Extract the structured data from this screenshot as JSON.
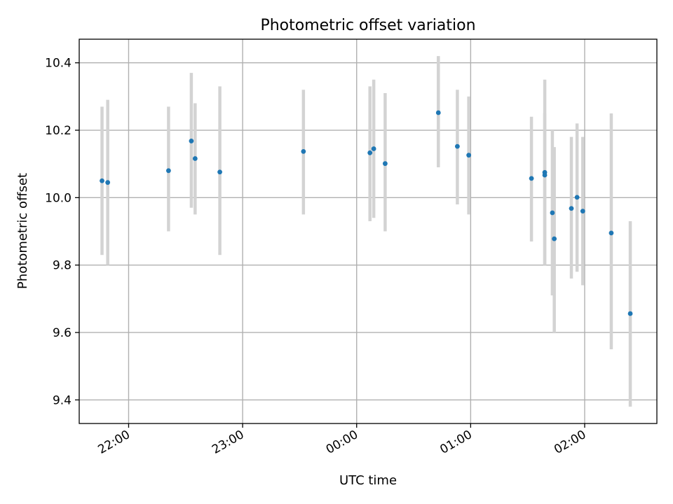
{
  "chart_data": {
    "type": "scatter",
    "title": "Photometric offset variation",
    "xlabel": "UTC time",
    "ylabel": "Photometric offset",
    "xlim": [
      "21:34",
      "02:38"
    ],
    "ylim": [
      9.33,
      10.47
    ],
    "x_ticks": [
      "22:00",
      "23:00",
      "00:00",
      "01:00",
      "02:00"
    ],
    "y_ticks": [
      "9.4",
      "9.6",
      "9.8",
      "10.0",
      "10.2",
      "10.4"
    ],
    "grid": true,
    "colors": {
      "point": "#1f77b4",
      "errorbar": "#d3d3d3",
      "grid": "#b0b0b0"
    },
    "points": [
      {
        "time": "21:46",
        "y": 10.05,
        "ylo": 9.83,
        "yhi": 10.27
      },
      {
        "time": "21:49",
        "y": 10.045,
        "ylo": 9.8,
        "yhi": 10.29
      },
      {
        "time": "22:21",
        "y": 10.08,
        "ylo": 9.9,
        "yhi": 10.27
      },
      {
        "time": "22:33",
        "y": 10.168,
        "ylo": 9.97,
        "yhi": 10.37
      },
      {
        "time": "22:35",
        "y": 10.116,
        "ylo": 9.95,
        "yhi": 10.28
      },
      {
        "time": "22:48",
        "y": 10.076,
        "ylo": 9.83,
        "yhi": 10.33
      },
      {
        "time": "23:32",
        "y": 10.137,
        "ylo": 9.95,
        "yhi": 10.32
      },
      {
        "time": "00:07",
        "y": 10.133,
        "ylo": 9.93,
        "yhi": 10.33
      },
      {
        "time": "00:09",
        "y": 10.145,
        "ylo": 9.94,
        "yhi": 10.35
      },
      {
        "time": "00:15",
        "y": 10.101,
        "ylo": 9.9,
        "yhi": 10.31
      },
      {
        "time": "00:43",
        "y": 10.252,
        "ylo": 10.09,
        "yhi": 10.42
      },
      {
        "time": "00:53",
        "y": 10.152,
        "ylo": 9.98,
        "yhi": 10.32
      },
      {
        "time": "00:59",
        "y": 10.126,
        "ylo": 9.95,
        "yhi": 10.3
      },
      {
        "time": "01:32",
        "y": 10.057,
        "ylo": 9.87,
        "yhi": 10.24
      },
      {
        "time": "01:39",
        "y": 10.075,
        "ylo": 9.8,
        "yhi": 10.35
      },
      {
        "time": "01:39",
        "y": 10.067,
        "ylo": 9.8,
        "yhi": 10.25
      },
      {
        "time": "01:43",
        "y": 9.955,
        "ylo": 9.71,
        "yhi": 10.2
      },
      {
        "time": "01:44",
        "y": 9.878,
        "ylo": 9.6,
        "yhi": 10.15
      },
      {
        "time": "01:53",
        "y": 9.968,
        "ylo": 9.76,
        "yhi": 10.18
      },
      {
        "time": "01:56",
        "y": 10.001,
        "ylo": 9.78,
        "yhi": 10.22
      },
      {
        "time": "01:59",
        "y": 9.96,
        "ylo": 9.74,
        "yhi": 10.18
      },
      {
        "time": "02:14",
        "y": 9.895,
        "ylo": 9.55,
        "yhi": 10.25
      },
      {
        "time": "02:24",
        "y": 9.656,
        "ylo": 9.38,
        "yhi": 9.93
      }
    ]
  }
}
